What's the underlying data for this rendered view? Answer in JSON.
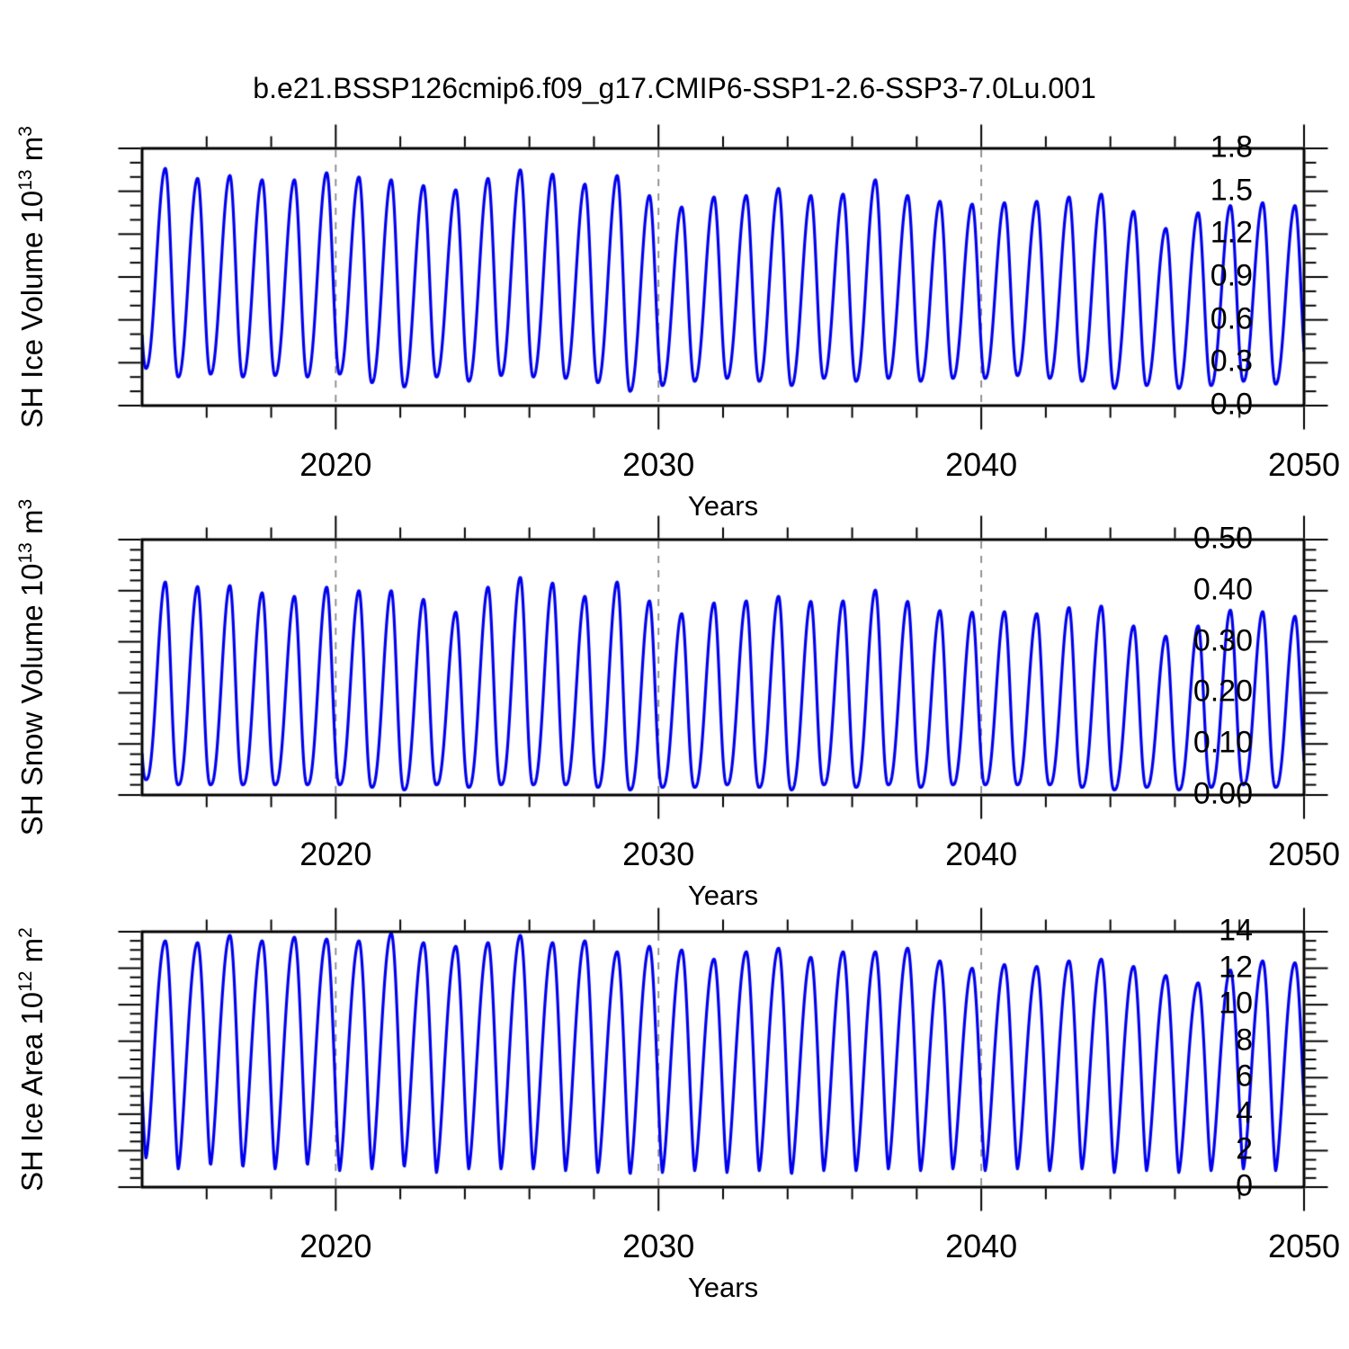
{
  "title": "b.e21.BSSP126cmip6.f09_g17.CMIP6-SSP1-2.6-SSP3-7.0Lu.001",
  "style": {
    "line_color": "#0000EE",
    "grid_color": "#888888",
    "axis_color": "#000000",
    "background": "#FFFFFF"
  },
  "x_axis": {
    "label": "Years",
    "range": [
      2014,
      2050
    ],
    "tick_years": [
      2020,
      2030,
      2040,
      2050
    ],
    "tick_labels": [
      "2020",
      "2030",
      "2040",
      "2050"
    ],
    "minor_tick_step_years": 2,
    "gridline_years": [
      2020,
      2030,
      2040
    ],
    "gridline_style": "dashed"
  },
  "chart_data": [
    {
      "type": "line",
      "panel": "top",
      "ylabel_plain": "SH Ice Volume 10^13 m^3",
      "ylabel_parts": [
        {
          "t": "SH Ice Volume 10"
        },
        {
          "t": "13",
          "sup": true
        },
        {
          "t": " m"
        },
        {
          "t": "3",
          "sup": true
        }
      ],
      "ylim": [
        0,
        1.8
      ],
      "ytick_values": [
        0.0,
        0.3,
        0.6,
        0.9,
        1.2,
        1.5,
        1.8
      ],
      "ytick_labels": [
        "0.0",
        "0.3",
        "0.6",
        "0.9",
        "1.2",
        "1.5",
        "1.8"
      ],
      "y_minor_step": 0.1,
      "grid": "vertical-dashed",
      "legend": "none",
      "seasonal_cycle": {
        "peaks": {
          "start_year": 2013,
          "phase": 0.72,
          "values": [
            1.6,
            1.66,
            1.59,
            1.61,
            1.58,
            1.58,
            1.63,
            1.6,
            1.58,
            1.54,
            1.51,
            1.59,
            1.65,
            1.62,
            1.55,
            1.61,
            1.47,
            1.39,
            1.46,
            1.47,
            1.52,
            1.47,
            1.48,
            1.58,
            1.47,
            1.43,
            1.41,
            1.42,
            1.43,
            1.46,
            1.48,
            1.36,
            1.24,
            1.35,
            1.4,
            1.42,
            1.4
          ]
        },
        "troughs": {
          "start_year": 2014,
          "phase": 0.12,
          "values": [
            0.26,
            0.2,
            0.22,
            0.2,
            0.21,
            0.2,
            0.22,
            0.16,
            0.13,
            0.2,
            0.17,
            0.21,
            0.2,
            0.19,
            0.16,
            0.1,
            0.14,
            0.17,
            0.19,
            0.17,
            0.14,
            0.19,
            0.17,
            0.19,
            0.17,
            0.19,
            0.19,
            0.21,
            0.19,
            0.17,
            0.12,
            0.14,
            0.12,
            0.14,
            0.17,
            0.15,
            0.16
          ]
        }
      }
    },
    {
      "type": "line",
      "panel": "middle",
      "ylabel_plain": "SH Snow Volume 10^13 m^3",
      "ylabel_parts": [
        {
          "t": "SH Snow Volume 10"
        },
        {
          "t": "13",
          "sup": true
        },
        {
          "t": " m"
        },
        {
          "t": "3",
          "sup": true
        }
      ],
      "ylim": [
        0,
        0.5
      ],
      "ytick_values": [
        0.0,
        0.1,
        0.2,
        0.3,
        0.4,
        0.5
      ],
      "ytick_labels": [
        "0.00",
        "0.10",
        "0.20",
        "0.30",
        "0.40",
        "0.50"
      ],
      "y_minor_step": 0.02,
      "grid": "vertical-dashed",
      "legend": "none",
      "seasonal_cycle": {
        "peaks": {
          "start_year": 2013,
          "phase": 0.72,
          "values": [
            0.4,
            0.417,
            0.408,
            0.41,
            0.396,
            0.389,
            0.407,
            0.4,
            0.4,
            0.383,
            0.358,
            0.407,
            0.426,
            0.415,
            0.389,
            0.417,
            0.38,
            0.355,
            0.376,
            0.38,
            0.389,
            0.379,
            0.38,
            0.401,
            0.379,
            0.361,
            0.358,
            0.359,
            0.355,
            0.367,
            0.37,
            0.331,
            0.311,
            0.331,
            0.362,
            0.359,
            0.35
          ]
        },
        "troughs": {
          "start_year": 2014,
          "phase": 0.12,
          "values": [
            0.03,
            0.02,
            0.02,
            0.02,
            0.02,
            0.02,
            0.02,
            0.015,
            0.01,
            0.02,
            0.015,
            0.02,
            0.02,
            0.02,
            0.015,
            0.01,
            0.015,
            0.015,
            0.02,
            0.015,
            0.01,
            0.02,
            0.015,
            0.02,
            0.015,
            0.02,
            0.02,
            0.02,
            0.02,
            0.015,
            0.01,
            0.015,
            0.01,
            0.015,
            0.02,
            0.015,
            0.02
          ]
        }
      }
    },
    {
      "type": "line",
      "panel": "bottom",
      "ylabel_plain": "SH Ice Area 10^12 m^2",
      "ylabel_parts": [
        {
          "t": "SH Ice Area 10"
        },
        {
          "t": "12",
          "sup": true
        },
        {
          "t": " m"
        },
        {
          "t": "2",
          "sup": true
        }
      ],
      "ylim": [
        0,
        14
      ],
      "ytick_values": [
        0,
        2,
        4,
        6,
        8,
        10,
        12,
        14
      ],
      "ytick_labels": [
        "0",
        "2",
        "4",
        "6",
        "8",
        "10",
        "12",
        "14"
      ],
      "y_minor_step": 0.5,
      "grid": "vertical-dashed",
      "legend": "none",
      "seasonal_cycle": {
        "peaks": {
          "start_year": 2013,
          "phase": 0.72,
          "values": [
            13.5,
            13.5,
            13.4,
            13.8,
            13.5,
            13.7,
            13.6,
            13.5,
            13.9,
            13.4,
            13.2,
            13.4,
            13.8,
            13.4,
            13.5,
            12.9,
            13.2,
            13.0,
            12.5,
            12.9,
            13.1,
            12.6,
            12.9,
            12.9,
            13.1,
            12.4,
            12.0,
            12.2,
            12.1,
            12.4,
            12.5,
            12.1,
            11.6,
            11.2,
            11.9,
            12.4,
            12.3
          ]
        },
        "troughs": {
          "start_year": 2014,
          "phase": 0.12,
          "values": [
            1.6,
            1.0,
            1.2,
            1.1,
            1.0,
            1.2,
            0.9,
            1.0,
            1.1,
            0.8,
            1.0,
            1.0,
            1.0,
            0.9,
            0.8,
            0.7,
            0.8,
            0.9,
            0.8,
            0.9,
            0.7,
            0.9,
            0.9,
            1.0,
            0.9,
            1.0,
            0.9,
            1.0,
            0.9,
            1.0,
            0.8,
            0.9,
            0.8,
            0.9,
            1.0,
            0.9,
            1.0
          ]
        }
      }
    }
  ]
}
